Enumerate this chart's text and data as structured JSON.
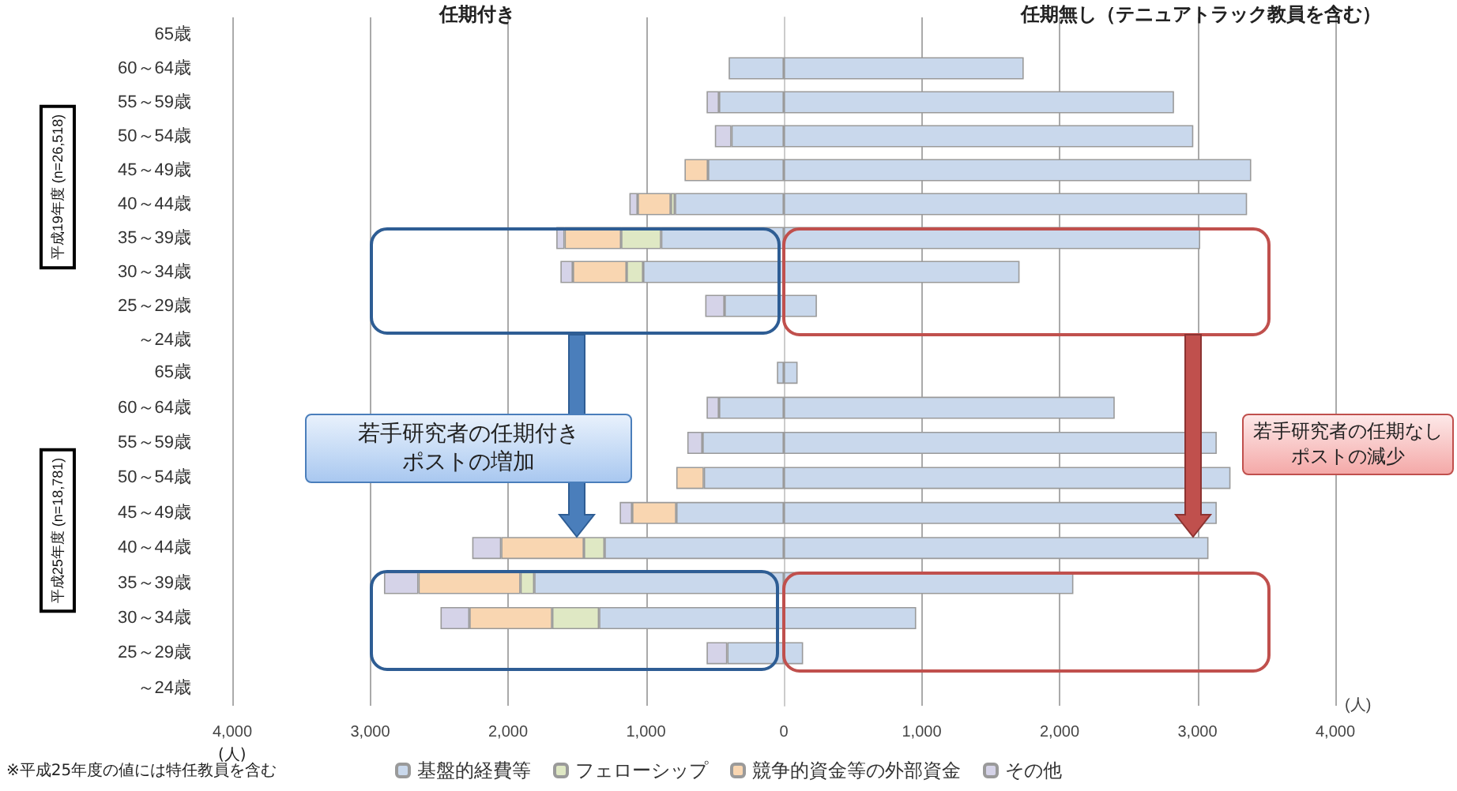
{
  "chart_data": [
    {
      "type": "bar",
      "orientation": "horizontal",
      "stacked": true,
      "ylabel": "平成19年度 (n=26,518)",
      "categories": [
        "65歳",
        "60～64歳",
        "55～59歳",
        "50～54歳",
        "45～49歳",
        "40～44歳",
        "35～39歳",
        "30～34歳",
        "25～29歳",
        "～24歳"
      ],
      "series": [
        {
          "color": "#c9d8ec",
          "values": [
            null,
            -400,
            -470,
            -380,
            -550,
            -790,
            -890,
            -1020,
            -430,
            null
          ]
        },
        {
          "color": "#dfe8c4",
          "values": [
            null,
            null,
            null,
            null,
            null,
            -30,
            -290,
            -120,
            null,
            null
          ]
        },
        {
          "color": "#f9d6b1",
          "values": [
            null,
            null,
            null,
            null,
            -170,
            -240,
            -410,
            -390,
            null,
            null
          ]
        },
        {
          "color": "#d5d3e8",
          "values": [
            null,
            null,
            -90,
            -120,
            null,
            -60,
            -60,
            -90,
            -140,
            null
          ]
        },
        {
          "color": "#c9d8ec",
          "values": [
            null,
            1740,
            2830,
            2970,
            3390,
            3360,
            3020,
            1710,
            240,
            null
          ]
        }
      ],
      "xlim": [
        -4000,
        4000
      ],
      "xticks": [
        -4000,
        -3000,
        -2000,
        -1000,
        0,
        1000,
        2000,
        3000,
        4000
      ],
      "tick_labels": "y",
      "grid": "x",
      "legend": false,
      "annotations": [
        "任期付き",
        "任期無し（テニュアトラック教員を含む）"
      ]
    },
    {
      "type": "bar",
      "orientation": "horizontal",
      "stacked": true,
      "ylabel": "平成25年度 (n=18,781)",
      "xlabel": "(人)",
      "categories": [
        "65歳",
        "60～64歳",
        "55～59歳",
        "50～54歳",
        "45～49歳",
        "40～44歳",
        "35～39歳",
        "30～34歳",
        "25～29歳",
        "～24歳"
      ],
      "series": [
        {
          "name": "基盤的経費等",
          "color": "#c9d8ec",
          "values": [
            -50,
            -470,
            -590,
            -580,
            -780,
            -1300,
            -1810,
            -1340,
            -410,
            null
          ]
        },
        {
          "name": "フェローシップ",
          "color": "#dfe8c4",
          "values": [
            null,
            null,
            null,
            null,
            null,
            -150,
            -100,
            -340,
            null,
            null
          ]
        },
        {
          "name": "競争的資金等の外部資金",
          "color": "#f9d6b1",
          "values": [
            null,
            null,
            null,
            -200,
            -320,
            -600,
            -740,
            -600,
            null,
            null
          ]
        },
        {
          "name": "その他",
          "color": "#d5d3e8",
          "values": [
            null,
            -90,
            -110,
            null,
            -90,
            -210,
            -250,
            -210,
            -150,
            null
          ]
        },
        {
          "color": "#c9d8ec",
          "values": [
            100,
            2400,
            3140,
            3240,
            3140,
            3080,
            2100,
            960,
            140,
            null
          ]
        }
      ],
      "xlim": [
        -4000,
        4000
      ],
      "xticks": [
        {
          "value": -4000,
          "label": "4,000"
        },
        {
          "value": -3000,
          "label": "3,000"
        },
        {
          "value": -2000,
          "label": "2,000"
        },
        {
          "value": -1000,
          "label": "1,000"
        },
        0,
        {
          "value": 1000,
          "label": "1,000"
        },
        {
          "value": 2000,
          "label": "2,000"
        },
        {
          "value": 3000,
          "label": "3,000"
        },
        {
          "value": 4000,
          "label": "4,000"
        }
      ],
      "grid": "x",
      "legend": "bottom",
      "annotations": [
        "若手研究者の任期付きポストの増加",
        "若手研究者の任期なしポストの減少",
        "※平成25年度の値には特任教員を含む"
      ]
    }
  ]
}
